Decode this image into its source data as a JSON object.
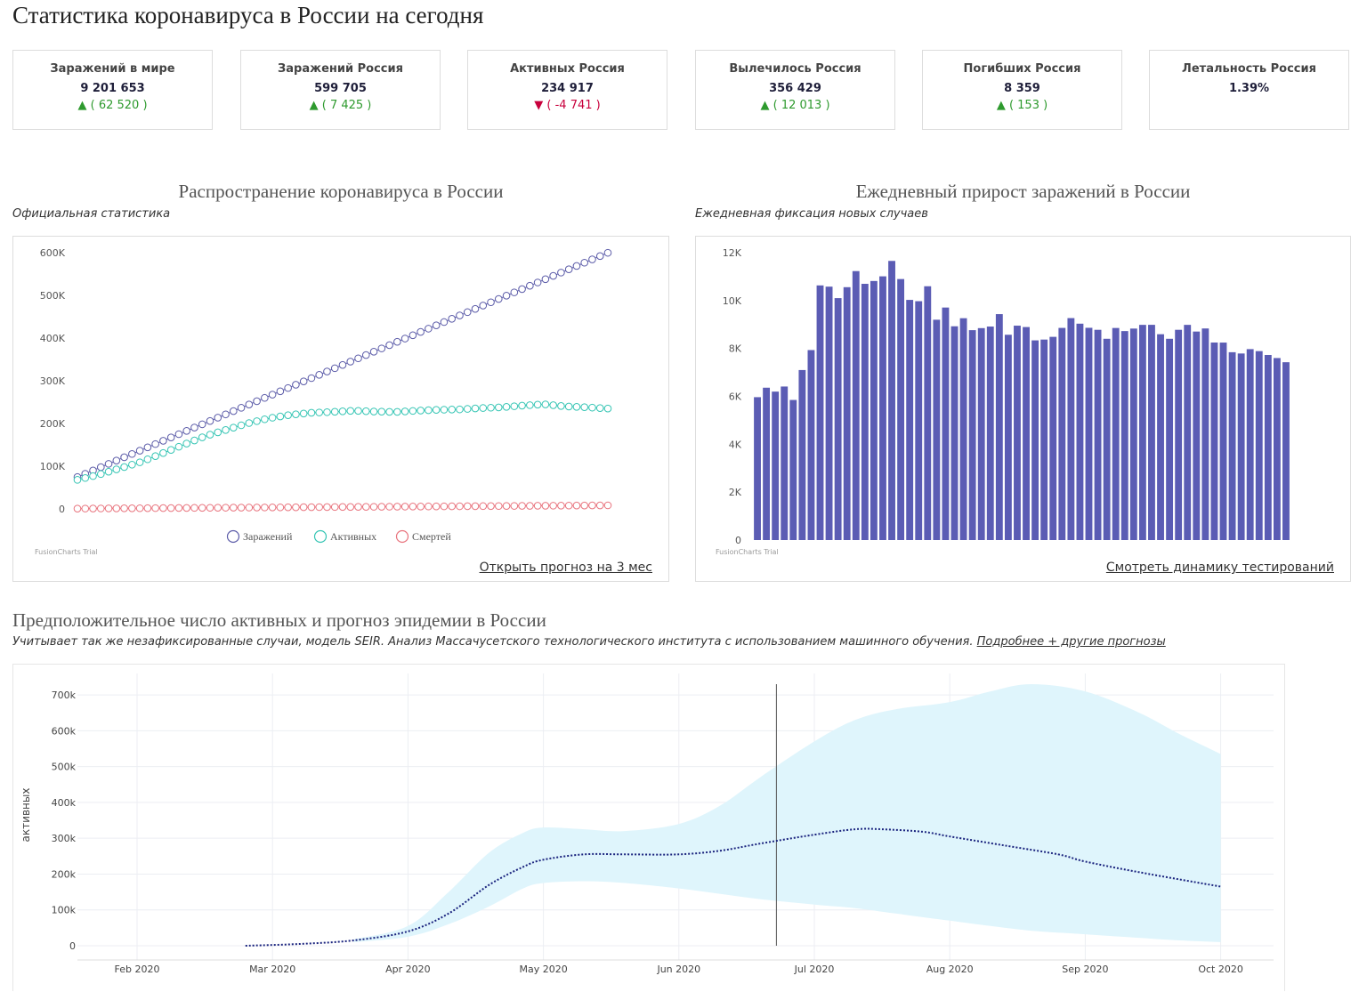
{
  "page_title": "Статистика коронавируса в России на сегодня",
  "cards": [
    {
      "title": "Заражений в мире",
      "value": "9 201 653",
      "delta": "▲ ( 62 520 )",
      "trend": "up"
    },
    {
      "title": "Заражений Россия",
      "value": "599 705",
      "delta": "▲ ( 7 425 )",
      "trend": "up"
    },
    {
      "title": "Активных Россия",
      "value": "234 917",
      "delta": "▼ ( -4 741 )",
      "trend": "down"
    },
    {
      "title": "Вылечилось Россия",
      "value": "356 429",
      "delta": "▲ ( 12 013 )",
      "trend": "up"
    },
    {
      "title": "Погибших Россия",
      "value": "8 359",
      "delta": "▲ ( 153 )",
      "trend": "up"
    },
    {
      "title": "Летальность Россия",
      "value": "1.39%",
      "delta": "",
      "trend": "none"
    }
  ],
  "colors": {
    "up": "#2e9a2e",
    "down": "#c8003c",
    "infected": "#5b5ba8",
    "active": "#36c5b4",
    "deaths": "#e8737d",
    "bars": "#5b5cb4",
    "band": "#dff5fc",
    "forecast_line": "#1a237e"
  },
  "spread_panel": {
    "title": "Распространение коронавируса в России",
    "subtitle": "Официальная статистика",
    "trial_text": "FusionCharts Trial",
    "link": "Открыть прогноз на 3 мес"
  },
  "daily_panel": {
    "title": "Ежедневный прирост заражений в России",
    "subtitle": "Ежедневная фиксация новых случаев",
    "trial_text": "FusionCharts Trial",
    "link": "Смотреть динамику тестирований"
  },
  "forecast_section": {
    "title": "Предположительное число активных и прогноз эпидемии в России",
    "subtitle": "Учитывает так же незафиксированные случаи, модель SEIR. Анализ Массачусетского технологического института с использованием машинного обучения.",
    "link": "Подробнее + другие прогнозы"
  },
  "chart_data": [
    {
      "type": "line",
      "ylim": [
        0,
        600000
      ],
      "ytick_labels": [
        "0",
        "100K",
        "200K",
        "300K",
        "400K",
        "500K",
        "600K"
      ],
      "ytick_values": [
        0,
        100000,
        200000,
        300000,
        400000,
        500000,
        600000
      ],
      "legend_position": "bottom",
      "series": [
        {
          "name": "Заражений",
          "start": 74588,
          "end": 599705,
          "points": 69
        },
        {
          "name": "Активных",
          "values_hint": [
            68000,
            80000,
            95000,
            110000,
            130000,
            150000,
            170000,
            185000,
            200000,
            212000,
            220000,
            225000,
            227000,
            230000,
            228000,
            227000,
            230000,
            232000,
            233000,
            236000,
            238000,
            242000,
            245000,
            240000,
            238000,
            235000
          ],
          "points": 69
        },
        {
          "name": "Смертей",
          "start": 681,
          "end": 8359,
          "points": 69
        }
      ]
    },
    {
      "type": "bar",
      "ylim": [
        0,
        12000
      ],
      "ytick_labels": [
        "0",
        "2K",
        "4K",
        "6K",
        "8K",
        "10K",
        "12K"
      ],
      "ytick_values": [
        0,
        2000,
        4000,
        6000,
        8000,
        10000,
        12000
      ],
      "values": [
        5966,
        6361,
        6198,
        6411,
        5849,
        7099,
        7933,
        10633,
        10581,
        10102,
        10559,
        11231,
        10699,
        10817,
        11012,
        11656,
        10899,
        10028,
        9974,
        10598,
        9200,
        9709,
        8926,
        9263,
        8764,
        8849,
        8915,
        9434,
        8572,
        8952,
        8894,
        8338,
        8371,
        8485,
        8858,
        9268,
        9035,
        8863,
        8779,
        8404,
        8855,
        8726,
        8831,
        8985,
        8987,
        8595,
        8404,
        8779,
        8985,
        8706,
        8835,
        8248,
        8246,
        7843,
        7790,
        7972,
        7889,
        7728,
        7600,
        7425
      ]
    },
    {
      "type": "area",
      "ylabel": "активных",
      "ylim": [
        0,
        730000
      ],
      "ytick_labels": [
        "0",
        "100k",
        "200k",
        "300k",
        "400k",
        "500k",
        "600k",
        "700k"
      ],
      "ytick_values": [
        0,
        100000,
        200000,
        300000,
        400000,
        500000,
        600000,
        700000
      ],
      "xtick_labels": [
        "Feb 2020",
        "Mar 2020",
        "Apr 2020",
        "May 2020",
        "Jun 2020",
        "Jul 2020",
        "Aug 2020",
        "Sep 2020",
        "Oct 2020"
      ],
      "x_months": [
        1,
        2,
        3,
        4,
        5,
        6,
        7,
        8,
        9
      ],
      "today_month": 5.72,
      "series": [
        {
          "name": "median",
          "x": [
            1.8,
            2.2,
            2.6,
            3.0,
            3.3,
            3.6,
            3.85,
            4.0,
            4.3,
            4.6,
            5.0,
            5.3,
            5.6,
            6.0,
            6.3,
            6.5,
            6.8,
            7.0,
            7.4,
            7.8,
            8.0,
            8.4,
            9.0
          ],
          "y": [
            0,
            5000,
            15000,
            40000,
            90000,
            170000,
            220000,
            240000,
            255000,
            255000,
            255000,
            265000,
            285000,
            310000,
            325000,
            325000,
            318000,
            305000,
            280000,
            255000,
            235000,
            205000,
            165000
          ]
        },
        {
          "name": "upper",
          "x": [
            2.6,
            3.0,
            3.3,
            3.6,
            3.85,
            4.0,
            4.3,
            4.6,
            5.0,
            5.3,
            5.6,
            6.0,
            6.3,
            6.6,
            7.0,
            7.3,
            7.6,
            8.0,
            8.4,
            8.7,
            9.0
          ],
          "y": [
            18000,
            55000,
            150000,
            260000,
            315000,
            330000,
            325000,
            320000,
            340000,
            390000,
            470000,
            570000,
            630000,
            660000,
            680000,
            710000,
            730000,
            710000,
            650000,
            590000,
            535000
          ]
        },
        {
          "name": "lower",
          "x": [
            2.6,
            3.0,
            3.3,
            3.6,
            3.85,
            4.0,
            4.3,
            4.6,
            5.0,
            5.3,
            5.6,
            6.0,
            6.3,
            6.6,
            7.0,
            7.3,
            7.6,
            8.0,
            8.4,
            8.7,
            9.0
          ],
          "y": [
            10000,
            25000,
            60000,
            110000,
            160000,
            175000,
            180000,
            175000,
            160000,
            145000,
            130000,
            115000,
            105000,
            90000,
            70000,
            55000,
            42000,
            32000,
            22000,
            15000,
            10000
          ]
        }
      ]
    }
  ]
}
